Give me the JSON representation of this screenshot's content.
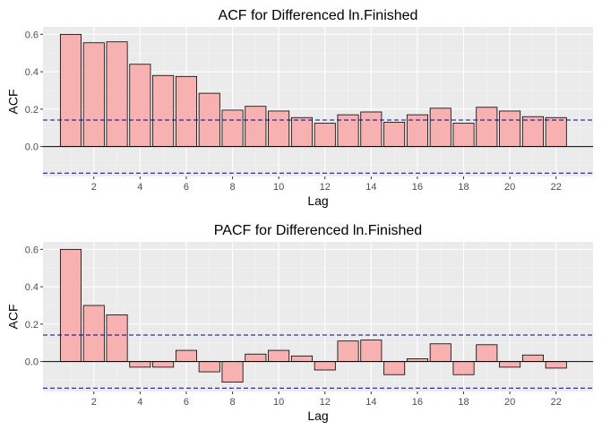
{
  "colors": {
    "panel": "#ebebeb",
    "grid_major": "#ffffff",
    "grid_minor": "#f5f5f5",
    "bar_fill": "#f8b1b1",
    "bar_stroke": "#000000",
    "conf_line": "#00008b"
  },
  "chart_data": [
    {
      "type": "bar",
      "title": "ACF for Differenced ln.Finished",
      "xlabel": "Lag",
      "ylabel": "ACF",
      "x": [
        1,
        2,
        3,
        4,
        5,
        6,
        7,
        8,
        9,
        10,
        11,
        12,
        13,
        14,
        15,
        16,
        17,
        18,
        19,
        20,
        21,
        22
      ],
      "values": [
        0.6,
        0.555,
        0.56,
        0.44,
        0.38,
        0.375,
        0.285,
        0.195,
        0.215,
        0.19,
        0.155,
        0.125,
        0.17,
        0.185,
        0.13,
        0.17,
        0.205,
        0.125,
        0.21,
        0.19,
        0.16,
        0.155
      ],
      "xticks": [
        2,
        4,
        6,
        8,
        10,
        12,
        14,
        16,
        18,
        20,
        22
      ],
      "xtick_labels": [
        "2",
        "4",
        "6",
        "8",
        "10",
        "12",
        "14",
        "16",
        "18",
        "20",
        "22"
      ],
      "yticks": [
        0.0,
        0.2,
        0.4,
        0.6
      ],
      "ytick_labels": [
        "0.0",
        "0.2",
        "0.4",
        "0.6"
      ],
      "ylim": [
        -0.16,
        0.64
      ],
      "xlim": [
        -0.2,
        23.6
      ],
      "conf_bound": 0.142
    },
    {
      "type": "bar",
      "title": "PACF for Differenced ln.Finished",
      "xlabel": "Lag",
      "ylabel": "ACF",
      "x": [
        1,
        2,
        3,
        4,
        5,
        6,
        7,
        8,
        9,
        10,
        11,
        12,
        13,
        14,
        15,
        16,
        17,
        18,
        19,
        20,
        21,
        22
      ],
      "values": [
        0.6,
        0.3,
        0.25,
        -0.03,
        -0.03,
        0.06,
        -0.055,
        -0.11,
        0.04,
        0.06,
        0.03,
        -0.045,
        0.11,
        0.115,
        -0.07,
        0.015,
        0.095,
        -0.07,
        0.09,
        -0.03,
        0.035,
        -0.035
      ],
      "xticks": [
        2,
        4,
        6,
        8,
        10,
        12,
        14,
        16,
        18,
        20,
        22
      ],
      "xtick_labels": [
        "2",
        "4",
        "6",
        "8",
        "10",
        "12",
        "14",
        "16",
        "18",
        "20",
        "22"
      ],
      "yticks": [
        0.0,
        0.2,
        0.4,
        0.6
      ],
      "ytick_labels": [
        "0.0",
        "0.2",
        "0.4",
        "0.6"
      ],
      "ylim": [
        -0.16,
        0.64
      ],
      "xlim": [
        -0.2,
        23.6
      ],
      "conf_bound": 0.142
    }
  ]
}
